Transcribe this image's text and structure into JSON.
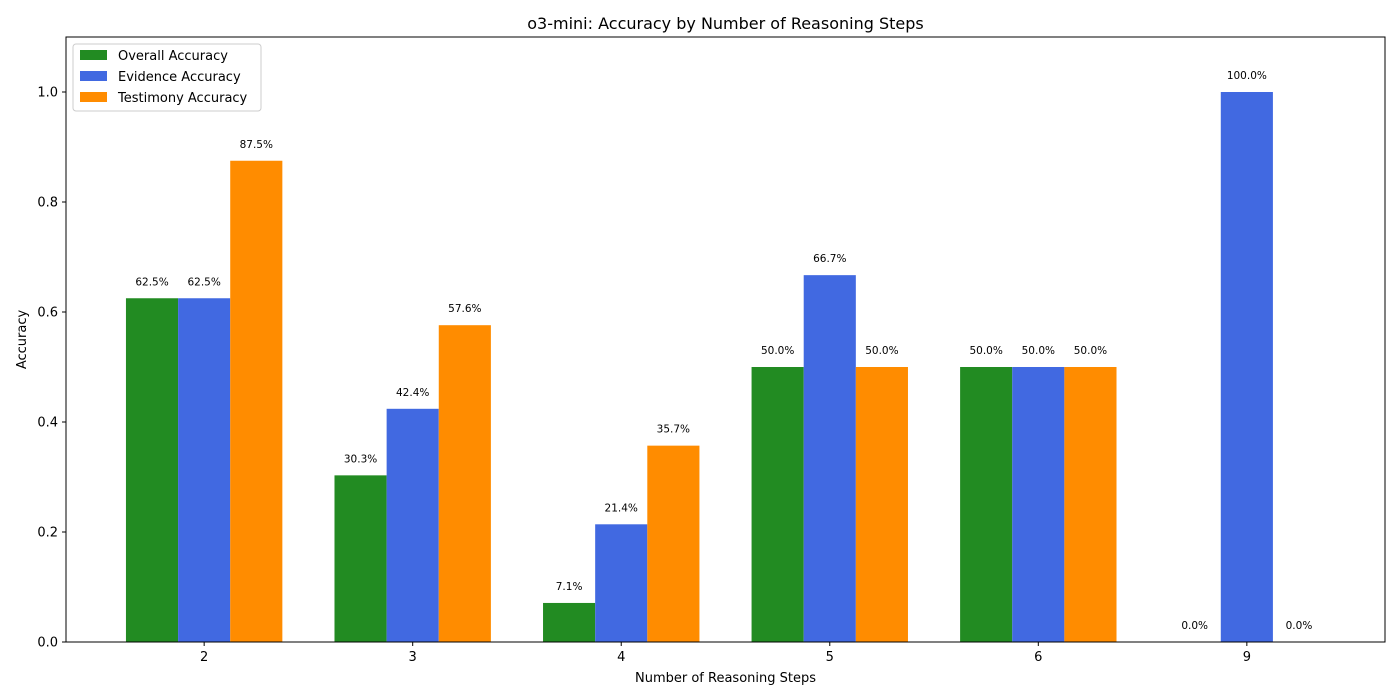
{
  "chart_data": {
    "type": "bar",
    "title": "o3-mini: Accuracy by Number of Reasoning Steps",
    "xlabel": "Number of Reasoning Steps",
    "ylabel": "Accuracy",
    "categories": [
      "2",
      "3",
      "4",
      "5",
      "6",
      "9"
    ],
    "ylim": [
      0,
      1.1
    ],
    "yticks": [
      "0.0",
      "0.2",
      "0.4",
      "0.6",
      "0.8",
      "1.0"
    ],
    "legend_position": "top-left",
    "grid": false,
    "series": [
      {
        "name": "Overall Accuracy",
        "color": "#228b22",
        "values": [
          0.625,
          0.303,
          0.071,
          0.5,
          0.5,
          0.0
        ],
        "labels": [
          "62.5%",
          "30.3%",
          "7.1%",
          "50.0%",
          "50.0%",
          "0.0%"
        ]
      },
      {
        "name": "Evidence Accuracy",
        "color": "#4169e1",
        "values": [
          0.625,
          0.424,
          0.214,
          0.667,
          0.5,
          1.0
        ],
        "labels": [
          "62.5%",
          "42.4%",
          "21.4%",
          "66.7%",
          "50.0%",
          "100.0%"
        ]
      },
      {
        "name": "Testimony Accuracy",
        "color": "#ff8c00",
        "values": [
          0.875,
          0.576,
          0.357,
          0.5,
          0.5,
          0.0
        ],
        "labels": [
          "87.5%",
          "57.6%",
          "35.7%",
          "50.0%",
          "50.0%",
          "0.0%"
        ]
      }
    ]
  }
}
